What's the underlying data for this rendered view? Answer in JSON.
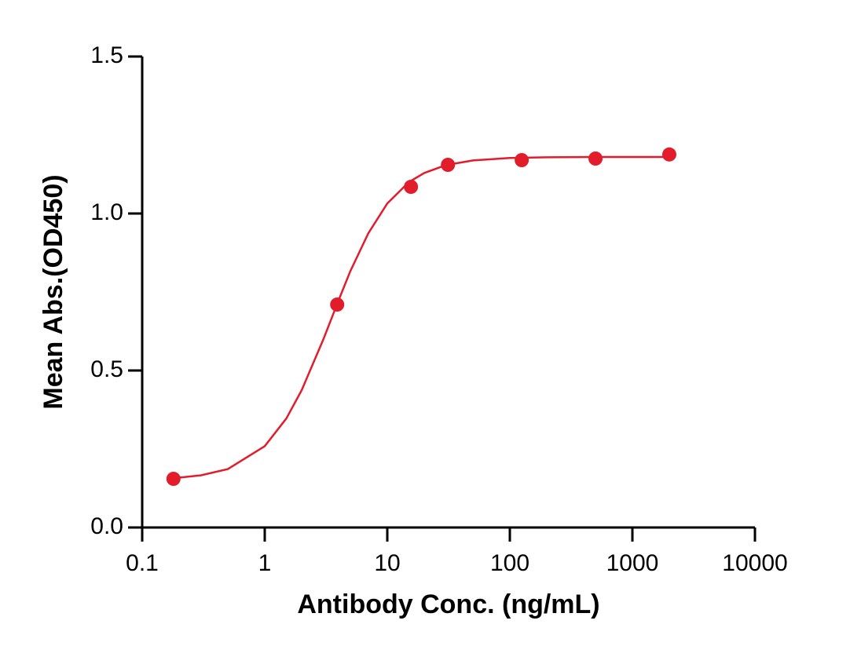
{
  "chart_data": {
    "type": "scatter",
    "xlabel": "Antibody Conc. (ng/mL)",
    "ylabel": "Mean Abs.(OD450)",
    "x": [
      0.18,
      3.9,
      15.6,
      31.25,
      125,
      500,
      2000
    ],
    "values": [
      0.155,
      0.71,
      1.085,
      1.155,
      1.17,
      1.175,
      1.188
    ],
    "color": "#e31c2b",
    "curve": {
      "x": [
        0.18,
        0.3,
        0.5,
        1,
        1.5,
        2,
        3,
        4,
        5,
        7,
        10,
        15,
        20,
        30,
        50,
        100,
        200,
        500,
        1000,
        2000
      ],
      "values": [
        0.157,
        0.166,
        0.186,
        0.259,
        0.347,
        0.437,
        0.598,
        0.723,
        0.817,
        0.937,
        1.032,
        1.1,
        1.129,
        1.154,
        1.169,
        1.177,
        1.179,
        1.18,
        1.18,
        1.18
      ]
    },
    "xscale": "log",
    "xlim": [
      0.1,
      10000
    ],
    "xticks": [
      0.1,
      1,
      10,
      100,
      1000,
      10000
    ],
    "ylim": [
      0,
      1.5
    ],
    "yticks": [
      {
        "value": 0,
        "label": "0.0"
      },
      0.5,
      {
        "value": 1,
        "label": "1.0"
      },
      1.5
    ]
  }
}
